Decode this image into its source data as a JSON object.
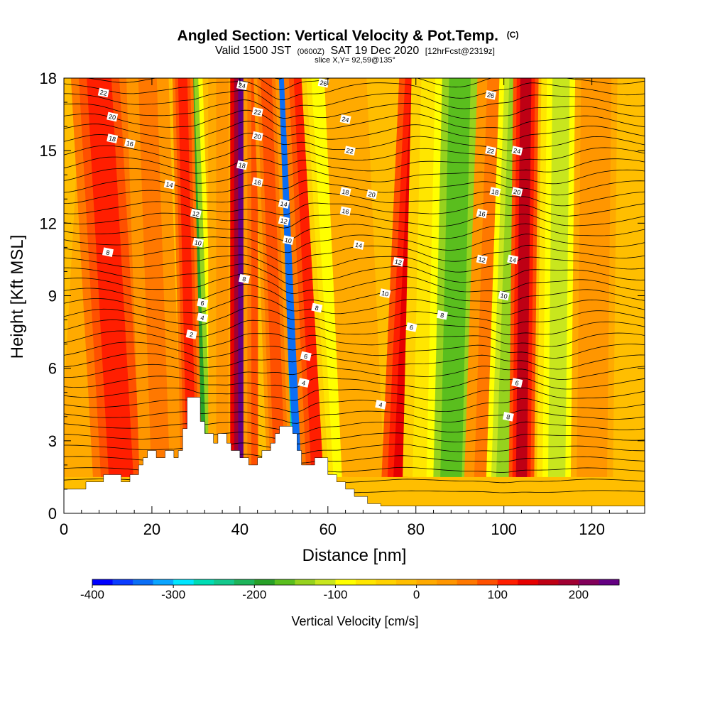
{
  "chart_data": {
    "type": "heatmap",
    "title_main": "Angled Section: Vertical Velocity & Pot.Temp.",
    "title_units": "(C)",
    "subtitle_prefix": "Valid 1500 JST",
    "subtitle_zulu": "(0600Z)",
    "subtitle_date": "SAT 19 Dec 2020",
    "subtitle_fcst": "[12hrFcst@2319z]",
    "slice_label": "slice X,Y= 92,59@135°",
    "xlabel": "Distance [nm]",
    "ylabel": "Height [Kft MSL]",
    "xlim": [
      0,
      132
    ],
    "ylim": [
      0,
      18
    ],
    "x_ticks": [
      0,
      20,
      40,
      60,
      80,
      100,
      120
    ],
    "y_ticks": [
      0,
      3,
      6,
      9,
      12,
      15,
      18
    ],
    "colorbar": {
      "label": "Vertical Velocity [cm/s]",
      "min": -400,
      "max": 250,
      "ticks": [
        -400,
        -300,
        -200,
        -100,
        0,
        100,
        200
      ],
      "colors": [
        "#0000ff",
        "#0a3cff",
        "#0a6ef5",
        "#0aa5ff",
        "#00e6ff",
        "#00dcb4",
        "#14c88c",
        "#1eb45a",
        "#28a028",
        "#5abe1e",
        "#96d21e",
        "#c8e61e",
        "#ffff00",
        "#ffe600",
        "#ffd200",
        "#ffbe00",
        "#ffaa00",
        "#ff9600",
        "#ff7800",
        "#ff5000",
        "#ff1e00",
        "#e60000",
        "#be0014",
        "#a00032",
        "#82005a",
        "#640082"
      ]
    },
    "terrain_profile": [
      [
        0,
        1
      ],
      [
        5,
        1
      ],
      [
        5,
        1.3
      ],
      [
        9,
        1.3
      ],
      [
        9,
        1.6
      ],
      [
        13,
        1.6
      ],
      [
        13,
        1.3
      ],
      [
        15,
        1.3
      ],
      [
        15,
        1.6
      ],
      [
        17,
        1.6
      ],
      [
        17,
        2
      ],
      [
        18,
        2
      ],
      [
        18,
        2.3
      ],
      [
        19,
        2.3
      ],
      [
        19,
        2.6
      ],
      [
        21,
        2.6
      ],
      [
        21,
        2.3
      ],
      [
        23,
        2.3
      ],
      [
        23,
        2.6
      ],
      [
        25,
        2.6
      ],
      [
        25,
        2.3
      ],
      [
        26,
        2.3
      ],
      [
        26,
        2.6
      ],
      [
        27,
        2.6
      ],
      [
        27,
        3.5
      ],
      [
        28,
        3.5
      ],
      [
        28,
        4.8
      ],
      [
        31,
        4.8
      ],
      [
        31,
        3.8
      ],
      [
        32,
        3.8
      ],
      [
        32,
        3.3
      ],
      [
        34,
        3.3
      ],
      [
        34,
        2.9
      ],
      [
        35,
        2.9
      ],
      [
        35,
        3.3
      ],
      [
        37,
        3.3
      ],
      [
        37,
        2.9
      ],
      [
        38,
        2.9
      ],
      [
        38,
        2.6
      ],
      [
        40,
        2.6
      ],
      [
        40,
        2.3
      ],
      [
        42,
        2.3
      ],
      [
        42,
        2.0
      ],
      [
        44,
        2.0
      ],
      [
        44,
        2.3
      ],
      [
        45,
        2.3
      ],
      [
        45,
        2.6
      ],
      [
        47,
        2.6
      ],
      [
        47,
        2.9
      ],
      [
        48,
        2.9
      ],
      [
        48,
        3.3
      ],
      [
        49,
        3.3
      ],
      [
        49,
        3.6
      ],
      [
        52,
        3.6
      ],
      [
        52,
        3.3
      ],
      [
        53,
        3.3
      ],
      [
        53,
        2.6
      ],
      [
        54,
        2.6
      ],
      [
        54,
        2.0
      ],
      [
        57,
        2.0
      ],
      [
        57,
        2.3
      ],
      [
        60,
        2.3
      ],
      [
        60,
        1.6
      ],
      [
        62,
        1.6
      ],
      [
        62,
        1.3
      ],
      [
        64,
        1.3
      ],
      [
        64,
        1.0
      ],
      [
        66,
        1.0
      ],
      [
        66,
        0.7
      ],
      [
        69,
        0.7
      ],
      [
        69,
        0.4
      ],
      [
        72,
        0.4
      ],
      [
        72,
        0.3
      ],
      [
        132,
        0.3
      ]
    ],
    "velocity_bands": [
      {
        "x": 3,
        "lean": 5,
        "width": 2.5,
        "value": 20
      },
      {
        "x": 13,
        "lean": -5,
        "width": 4,
        "value": 120
      },
      {
        "x": 22,
        "lean": -3,
        "width": 3,
        "value": 60
      },
      {
        "x": 31,
        "lean": -3,
        "width": 2.2,
        "value": -180
      },
      {
        "x": 29,
        "lean": -2,
        "width": 1.5,
        "value": 110
      },
      {
        "x": 36,
        "lean": 0,
        "width": 2,
        "value": 30
      },
      {
        "x": 41,
        "lean": 0,
        "width": 2,
        "value": 230
      },
      {
        "x": 44,
        "lean": 0,
        "width": 2,
        "value": 80
      },
      {
        "x": 47,
        "lean": 0,
        "width": 1.8,
        "value": -30
      },
      {
        "x": 54,
        "lean": -5,
        "width": 2.2,
        "value": -330
      },
      {
        "x": 49,
        "lean": -3,
        "width": 1.8,
        "value": 90
      },
      {
        "x": 58,
        "lean": -4,
        "width": 2.5,
        "value": 110
      },
      {
        "x": 63,
        "lean": -5,
        "width": 2.5,
        "value": -90
      },
      {
        "x": 68,
        "lean": -4,
        "width": 3,
        "value": 20
      },
      {
        "x": 77,
        "lean": 4,
        "width": 3,
        "value": 140
      },
      {
        "x": 81,
        "lean": 2,
        "width": 2.5,
        "value": -60
      },
      {
        "x": 88,
        "lean": 2,
        "width": 3.5,
        "value": -160
      },
      {
        "x": 95,
        "lean": 3,
        "width": 2.5,
        "value": 60
      },
      {
        "x": 100,
        "lean": 3,
        "width": 2.5,
        "value": -150
      },
      {
        "x": 104,
        "lean": 1,
        "width": 1.8,
        "value": 150
      },
      {
        "x": 112,
        "lean": 1,
        "width": 2.8,
        "value": -110
      },
      {
        "x": 120,
        "lean": 1,
        "width": 3,
        "value": 40
      }
    ],
    "isotherm_labels": [
      {
        "x": 9,
        "y": 17.4,
        "text": "22"
      },
      {
        "x": 11,
        "y": 16.4,
        "text": "20"
      },
      {
        "x": 11,
        "y": 15.5,
        "text": "18"
      },
      {
        "x": 15,
        "y": 15.3,
        "text": "16"
      },
      {
        "x": 24,
        "y": 13.6,
        "text": "14"
      },
      {
        "x": 30,
        "y": 12.4,
        "text": "12"
      },
      {
        "x": 30.5,
        "y": 11.2,
        "text": "10"
      },
      {
        "x": 10,
        "y": 10.8,
        "text": "8"
      },
      {
        "x": 31.5,
        "y": 8.7,
        "text": "6"
      },
      {
        "x": 31.5,
        "y": 8.1,
        "text": "4"
      },
      {
        "x": 29,
        "y": 7.4,
        "text": "2"
      },
      {
        "x": 40.5,
        "y": 17.7,
        "text": "24"
      },
      {
        "x": 44,
        "y": 16.6,
        "text": "22"
      },
      {
        "x": 44,
        "y": 15.6,
        "text": "20"
      },
      {
        "x": 40.5,
        "y": 14.4,
        "text": "18"
      },
      {
        "x": 44,
        "y": 13.7,
        "text": "16"
      },
      {
        "x": 50,
        "y": 12.8,
        "text": "14"
      },
      {
        "x": 50,
        "y": 12.1,
        "text": "12"
      },
      {
        "x": 51,
        "y": 11.3,
        "text": "10"
      },
      {
        "x": 41,
        "y": 9.7,
        "text": "8"
      },
      {
        "x": 57.5,
        "y": 8.5,
        "text": "8"
      },
      {
        "x": 55,
        "y": 6.5,
        "text": "6"
      },
      {
        "x": 54.5,
        "y": 5.4,
        "text": "4"
      },
      {
        "x": 59,
        "y": 17.8,
        "text": "26"
      },
      {
        "x": 64,
        "y": 16.3,
        "text": "24"
      },
      {
        "x": 65,
        "y": 15.0,
        "text": "22"
      },
      {
        "x": 64,
        "y": 13.3,
        "text": "18"
      },
      {
        "x": 70,
        "y": 13.2,
        "text": "20"
      },
      {
        "x": 64,
        "y": 12.5,
        "text": "16"
      },
      {
        "x": 67,
        "y": 11.1,
        "text": "14"
      },
      {
        "x": 76,
        "y": 10.4,
        "text": "12"
      },
      {
        "x": 73,
        "y": 9.1,
        "text": "10"
      },
      {
        "x": 79,
        "y": 7.7,
        "text": "6"
      },
      {
        "x": 72,
        "y": 4.5,
        "text": "4"
      },
      {
        "x": 97,
        "y": 17.3,
        "text": "26"
      },
      {
        "x": 97,
        "y": 15.0,
        "text": "22"
      },
      {
        "x": 103,
        "y": 15.0,
        "text": "24"
      },
      {
        "x": 98,
        "y": 13.3,
        "text": "18"
      },
      {
        "x": 103,
        "y": 13.3,
        "text": "20"
      },
      {
        "x": 95,
        "y": 12.4,
        "text": "16"
      },
      {
        "x": 95,
        "y": 10.5,
        "text": "12"
      },
      {
        "x": 102,
        "y": 10.5,
        "text": "14"
      },
      {
        "x": 100,
        "y": 9.0,
        "text": "10"
      },
      {
        "x": 86,
        "y": 8.2,
        "text": "8"
      },
      {
        "x": 103,
        "y": 5.4,
        "text": "6"
      },
      {
        "x": 101,
        "y": 4.0,
        "text": "8"
      }
    ]
  }
}
